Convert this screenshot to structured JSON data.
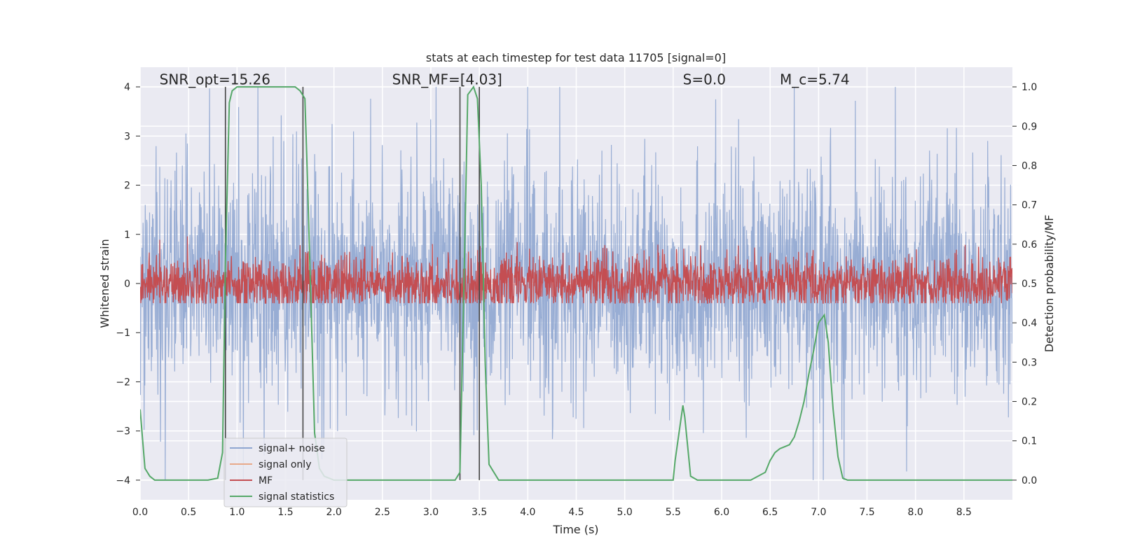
{
  "chart_data": {
    "type": "line",
    "title": "stats at each timestep for test data 11705 [signal=0]",
    "xlabel": "Time (s)",
    "ylabel": "Whitened strain",
    "y2label": "Detection probability/MF",
    "xlim": [
      0.0,
      9.0
    ],
    "ylim": [
      -4.4,
      4.4
    ],
    "y2lim": [
      -0.05,
      1.05
    ],
    "x_ticks": [
      "0.0",
      "0.5",
      "1.0",
      "1.5",
      "2.0",
      "2.5",
      "3.0",
      "3.5",
      "4.0",
      "4.5",
      "5.0",
      "5.5",
      "6.0",
      "6.5",
      "7.0",
      "7.5",
      "8.0",
      "8.5"
    ],
    "y_ticks": [
      "4",
      "3",
      "2",
      "1",
      "0",
      "−1",
      "−2",
      "−3",
      "−4"
    ],
    "y2_ticks": [
      "1.0",
      "0.9",
      "0.8",
      "0.7",
      "0.6",
      "0.5",
      "0.4",
      "0.3",
      "0.2",
      "0.1",
      "0.0"
    ],
    "grid": true,
    "annotations": [
      {
        "label": "SNR_opt=15.26",
        "x": 0.2,
        "y": 4.15
      },
      {
        "label": "SNR_MF=[4.03]",
        "x": 2.6,
        "y": 4.15
      },
      {
        "label": "S=0.0",
        "x": 5.6,
        "y": 4.15
      },
      {
        "label": "M_c=5.74",
        "x": 6.6,
        "y": 4.15
      }
    ],
    "vertical_markers": [
      0.88,
      1.68,
      3.3,
      3.5
    ],
    "series": [
      {
        "name": "signal+ noise",
        "color": "#8fa6d0",
        "typical_amplitude": 1.5,
        "max_abs": 4.0
      },
      {
        "name": "signal only",
        "color": "#e8a98a",
        "values": []
      },
      {
        "name": "MF",
        "color": "#c44e52",
        "center": 0.5,
        "amplitude_range": [
          0.45,
          0.62
        ]
      },
      {
        "name": "signal statistics",
        "color": "#55a868",
        "x": [
          0.0,
          0.05,
          0.1,
          0.15,
          0.2,
          0.3,
          0.5,
          0.7,
          0.8,
          0.85,
          0.88,
          0.92,
          0.95,
          1.0,
          1.05,
          1.2,
          1.4,
          1.6,
          1.65,
          1.7,
          1.72,
          1.75,
          1.78,
          1.8,
          1.85,
          1.9,
          2.0,
          2.5,
          3.0,
          3.25,
          3.3,
          3.35,
          3.38,
          3.44,
          3.48,
          3.52,
          3.56,
          3.6,
          3.7,
          4.0,
          4.5,
          5.0,
          5.5,
          5.52,
          5.6,
          5.62,
          5.68,
          5.75,
          6.0,
          6.3,
          6.45,
          6.5,
          6.55,
          6.6,
          6.65,
          6.7,
          6.75,
          6.8,
          6.85,
          6.9,
          6.95,
          7.0,
          7.06,
          7.1,
          7.12,
          7.15,
          7.2,
          7.25,
          7.3,
          7.5,
          8.0,
          8.5,
          9.0
        ],
        "values": [
          0.18,
          0.03,
          0.01,
          0.0,
          0.0,
          0.0,
          0.0,
          0.0,
          0.005,
          0.07,
          0.55,
          0.96,
          0.99,
          1.0,
          1.0,
          1.0,
          1.0,
          1.0,
          0.99,
          0.97,
          0.82,
          0.56,
          0.3,
          0.12,
          0.03,
          0.01,
          0.0,
          0.0,
          0.0,
          0.0,
          0.02,
          0.6,
          0.98,
          1.0,
          0.97,
          0.75,
          0.3,
          0.04,
          0.0,
          0.0,
          0.0,
          0.0,
          0.0,
          0.05,
          0.19,
          0.16,
          0.01,
          0.0,
          0.0,
          0.0,
          0.02,
          0.05,
          0.07,
          0.08,
          0.085,
          0.09,
          0.11,
          0.15,
          0.2,
          0.27,
          0.33,
          0.4,
          0.42,
          0.35,
          0.28,
          0.18,
          0.06,
          0.005,
          0.0,
          0.0,
          0.0,
          0.0,
          0.0
        ]
      }
    ],
    "legend": {
      "position": "lower-left",
      "entries": [
        "signal+ noise",
        "signal only",
        "MF",
        "signal statistics"
      ]
    }
  }
}
